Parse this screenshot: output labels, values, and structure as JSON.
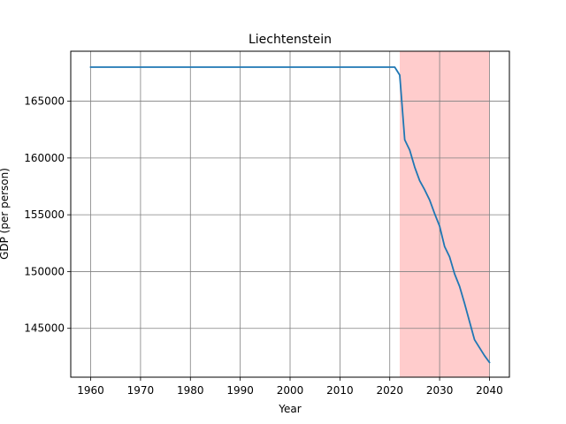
{
  "chart_data": {
    "type": "line",
    "title": "Liechtenstein",
    "xlabel": "Year",
    "ylabel": "GDP (per person)",
    "xlim": [
      1956,
      2044
    ],
    "ylim": [
      140700,
      169400
    ],
    "xticks": [
      1960,
      1970,
      1980,
      1990,
      2000,
      2010,
      2020,
      2030,
      2040
    ],
    "yticks": [
      145000,
      150000,
      155000,
      160000,
      165000
    ],
    "grid": true,
    "shaded_region": {
      "x": [
        2022,
        2040
      ],
      "color": "#ffcccc"
    },
    "line_color": "#1f77b4",
    "series": [
      {
        "x": [
          1960,
          1970,
          1980,
          1990,
          2000,
          2010,
          2021,
          2022,
          2023,
          2024,
          2025,
          2026,
          2027,
          2028,
          2029,
          2030,
          2031,
          2032,
          2033,
          2034,
          2035,
          2036,
          2037,
          2038,
          2039,
          2040
        ],
        "y": [
          168000,
          168000,
          168000,
          168000,
          168000,
          168000,
          168000,
          167300,
          161600,
          160700,
          159200,
          158000,
          157200,
          156300,
          155100,
          154000,
          152200,
          151300,
          149800,
          148700,
          147200,
          145600,
          144000,
          143300,
          142600,
          142000
        ]
      }
    ]
  }
}
